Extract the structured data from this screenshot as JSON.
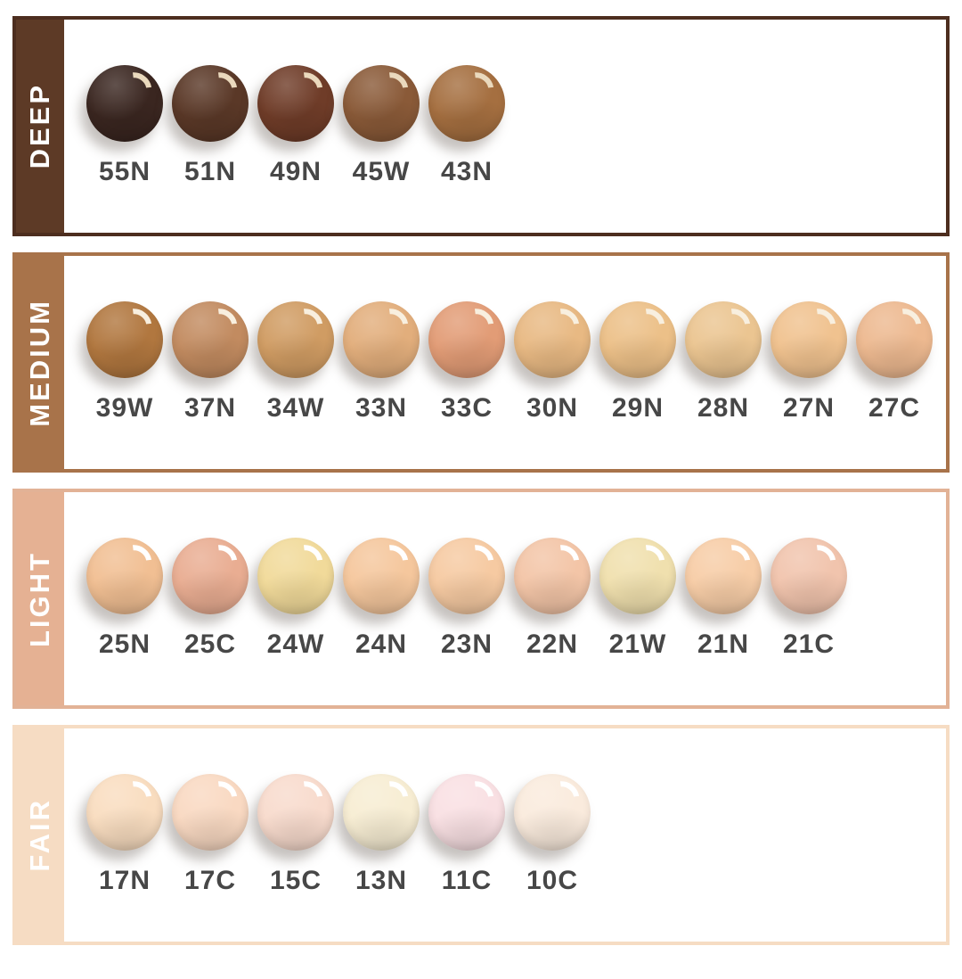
{
  "label_color": "#474747",
  "rows": [
    {
      "id": "deep",
      "label": "DEEP",
      "color": "#5d3a26",
      "border_color": "#4d2e1f",
      "gloss_color": "#ead9bd",
      "shades": [
        {
          "code": "55N",
          "color": "#3a2620"
        },
        {
          "code": "51N",
          "color": "#5a3827"
        },
        {
          "code": "49N",
          "color": "#6f3c28"
        },
        {
          "code": "45W",
          "color": "#8a5a38"
        },
        {
          "code": "43N",
          "color": "#a56f40"
        }
      ]
    },
    {
      "id": "medium",
      "label": "MEDIUM",
      "color": "#a8734a",
      "border_color": "#a8734a",
      "gloss_color": "#f8efdf",
      "shades": [
        {
          "code": "39W",
          "color": "#b1773f"
        },
        {
          "code": "37N",
          "color": "#c28b60"
        },
        {
          "code": "34W",
          "color": "#d09c63"
        },
        {
          "code": "33N",
          "color": "#e2ae7c"
        },
        {
          "code": "33C",
          "color": "#e29c76"
        },
        {
          "code": "30N",
          "color": "#e8b983"
        },
        {
          "code": "29N",
          "color": "#ecc088"
        },
        {
          "code": "28N",
          "color": "#ebc591"
        },
        {
          "code": "27N",
          "color": "#f0c28f"
        },
        {
          "code": "27C",
          "color": "#edb990"
        }
      ]
    },
    {
      "id": "light",
      "label": "LIGHT",
      "color": "#e5b193",
      "border_color": "#e2b296",
      "gloss_color": "#ffffff",
      "shades": [
        {
          "code": "25N",
          "color": "#f1bf93"
        },
        {
          "code": "25C",
          "color": "#e9ad92"
        },
        {
          "code": "24W",
          "color": "#f1da9a"
        },
        {
          "code": "24N",
          "color": "#f5c79d"
        },
        {
          "code": "23N",
          "color": "#f6caa2"
        },
        {
          "code": "22N",
          "color": "#f3c5a7"
        },
        {
          "code": "21W",
          "color": "#f0e0ae"
        },
        {
          "code": "21N",
          "color": "#f7cda7"
        },
        {
          "code": "21C",
          "color": "#f1c4ad"
        }
      ]
    },
    {
      "id": "fair",
      "label": "FAIR",
      "color": "#f6dcc3",
      "border_color": "#f6dcc3",
      "gloss_color": "#ffffff",
      "shades": [
        {
          "code": "17N",
          "color": "#f9ddc0"
        },
        {
          "code": "17C",
          "color": "#f9d9c2"
        },
        {
          "code": "15C",
          "color": "#f8dbcd"
        },
        {
          "code": "13N",
          "color": "#f7edd3"
        },
        {
          "code": "11C",
          "color": "#f9e0e3"
        },
        {
          "code": "10C",
          "color": "#faebdd"
        }
      ]
    }
  ]
}
